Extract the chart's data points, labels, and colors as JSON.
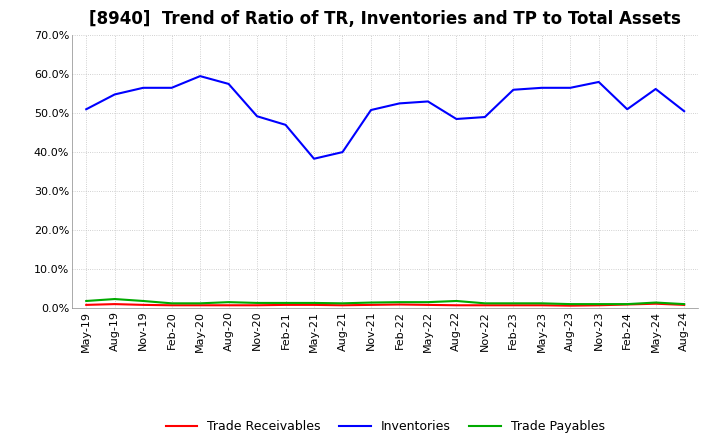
{
  "title": "[8940]  Trend of Ratio of TR, Inventories and TP to Total Assets",
  "ylim": [
    0.0,
    0.7
  ],
  "yticks": [
    0.0,
    0.1,
    0.2,
    0.3,
    0.4,
    0.5,
    0.6,
    0.7
  ],
  "x_labels": [
    "May-19",
    "Aug-19",
    "Nov-19",
    "Feb-20",
    "May-20",
    "Aug-20",
    "Nov-20",
    "Feb-21",
    "May-21",
    "Aug-21",
    "Nov-21",
    "Feb-22",
    "May-22",
    "Aug-22",
    "Nov-22",
    "Feb-23",
    "May-23",
    "Aug-23",
    "Nov-23",
    "Feb-24",
    "May-24",
    "Aug-24"
  ],
  "inventories": [
    0.51,
    0.548,
    0.565,
    0.565,
    0.595,
    0.575,
    0.492,
    0.47,
    0.383,
    0.4,
    0.508,
    0.525,
    0.53,
    0.485,
    0.49,
    0.56,
    0.565,
    0.565,
    0.58,
    0.51,
    0.562,
    0.505
  ],
  "trade_receivables": [
    0.008,
    0.01,
    0.008,
    0.007,
    0.007,
    0.007,
    0.007,
    0.008,
    0.008,
    0.007,
    0.008,
    0.009,
    0.008,
    0.007,
    0.007,
    0.007,
    0.007,
    0.006,
    0.007,
    0.009,
    0.011,
    0.008
  ],
  "trade_payables": [
    0.018,
    0.023,
    0.018,
    0.012,
    0.012,
    0.015,
    0.013,
    0.013,
    0.013,
    0.012,
    0.014,
    0.015,
    0.015,
    0.018,
    0.012,
    0.012,
    0.012,
    0.01,
    0.01,
    0.01,
    0.014,
    0.01
  ],
  "color_inventories": "#0000FF",
  "color_trade_receivables": "#FF0000",
  "color_trade_payables": "#00AA00",
  "legend_labels": [
    "Trade Receivables",
    "Inventories",
    "Trade Payables"
  ],
  "background_color": "#FFFFFF",
  "grid_color": "#BBBBBB",
  "title_fontsize": 12,
  "tick_fontsize": 8,
  "legend_fontsize": 9,
  "linewidth": 1.5
}
